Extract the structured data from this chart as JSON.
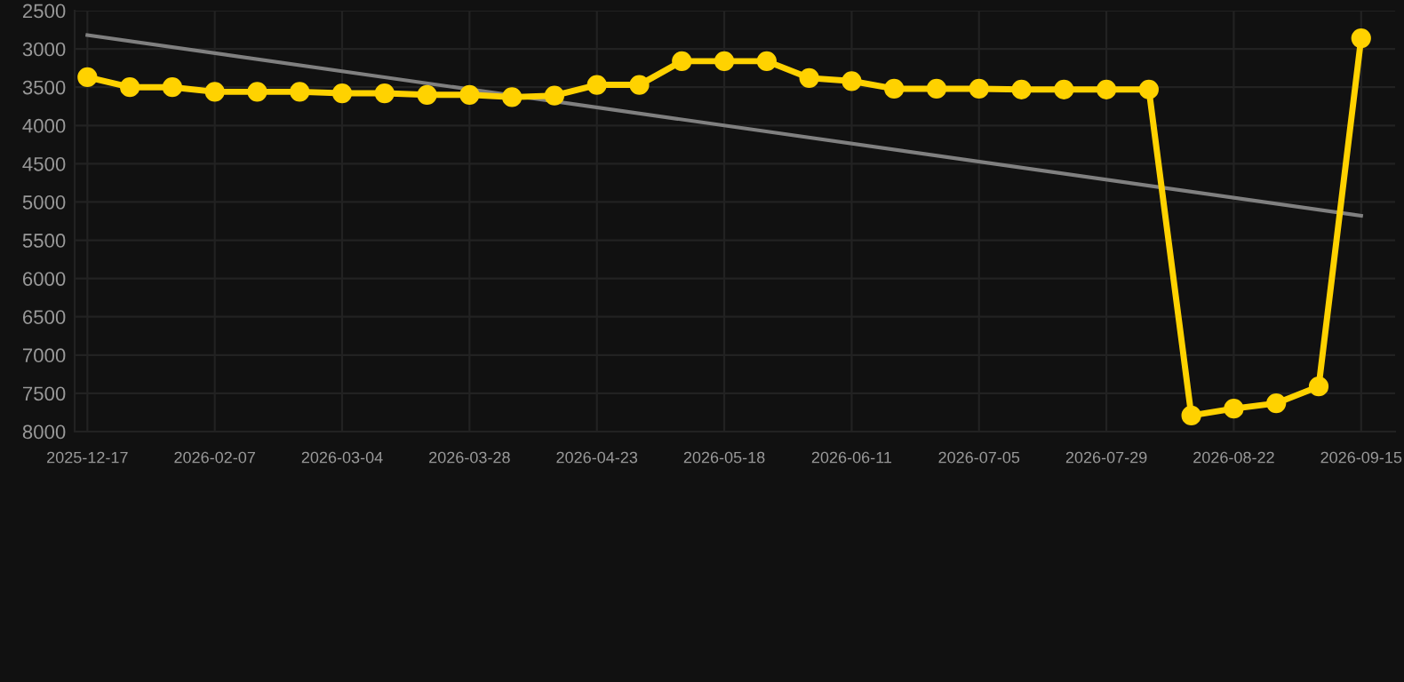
{
  "chart_data": {
    "type": "line",
    "categories": [
      "2025-12-17",
      null,
      null,
      "2026-02-07",
      null,
      null,
      "2026-03-04",
      null,
      null,
      "2026-03-28",
      null,
      null,
      "2026-04-23",
      null,
      null,
      "2026-05-18",
      null,
      null,
      "2026-06-11",
      null,
      null,
      "2026-07-05",
      null,
      null,
      "2026-07-29",
      null,
      null,
      "2026-08-22",
      null,
      null,
      "2026-09-15"
    ],
    "series": [
      {
        "color": "#ffd200",
        "marker": "circle",
        "values": [
          3370,
          3500,
          3500,
          3560,
          3560,
          3560,
          3580,
          3580,
          3600,
          3600,
          3630,
          3610,
          3470,
          3470,
          3160,
          3160,
          3160,
          3380,
          3420,
          3520,
          3520,
          3520,
          3530,
          3530,
          3530,
          3530,
          7790,
          7700,
          7630,
          7410,
          2860
        ]
      },
      {
        "color": "#808080",
        "marker": "none",
        "values": [
          2820,
          null,
          null,
          null,
          null,
          null,
          null,
          null,
          null,
          null,
          null,
          null,
          null,
          null,
          null,
          null,
          null,
          null,
          null,
          null,
          null,
          null,
          null,
          null,
          null,
          null,
          null,
          null,
          null,
          null,
          5180
        ]
      }
    ],
    "ylim": [
      8000,
      2500
    ],
    "yticks": [
      2500,
      3000,
      3500,
      4000,
      4500,
      5000,
      5500,
      6000,
      6500,
      7000,
      7500,
      8000
    ],
    "grid": true,
    "line_style": "solid"
  }
}
